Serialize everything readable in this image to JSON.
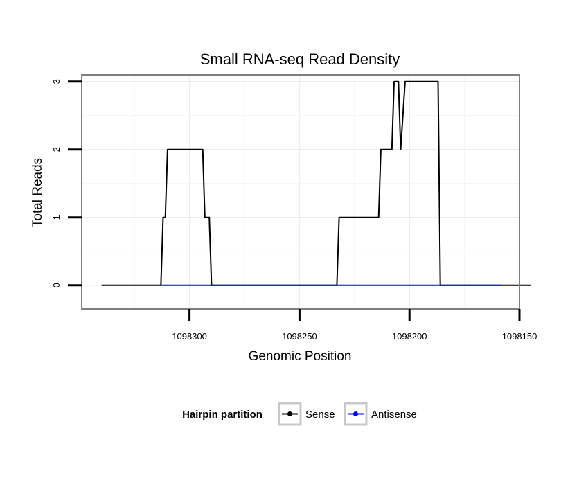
{
  "chart_data": {
    "type": "line",
    "title": "Small RNA-seq Read Density",
    "xlabel": "Genomic Position",
    "ylabel": "Total Reads",
    "x_reversed": true,
    "xlim": [
      1098349,
      1098150
    ],
    "ylim": [
      -0.35,
      3.1
    ],
    "x_ticks": [
      1098300,
      1098250,
      1098200,
      1098150
    ],
    "x_tick_labels": [
      "1098300",
      "1098250",
      "1098200",
      "1098150"
    ],
    "y_ticks": [
      0,
      1,
      2,
      3
    ],
    "y_tick_labels": [
      "0",
      "1",
      "2",
      "3"
    ],
    "grid": true,
    "legend": {
      "title": "Hairpin partition",
      "position": "bottom",
      "entries": [
        "Sense",
        "Antisense"
      ]
    },
    "series": [
      {
        "name": "Sense",
        "color": "#000000",
        "x": [
          1098340,
          1098313,
          1098312,
          1098311,
          1098310,
          1098294,
          1098293,
          1098291,
          1098290,
          1098253,
          1098233,
          1098232,
          1098214,
          1098213,
          1098208,
          1098207,
          1098205,
          1098204,
          1098202,
          1098200,
          1098199,
          1098198,
          1098187,
          1098186,
          1098184,
          1098183,
          1098182,
          1098181,
          1098176,
          1098175,
          1098158,
          1098157,
          1098150,
          1098145
        ],
        "y": [
          0,
          0,
          1,
          1,
          2,
          2,
          1,
          1,
          0,
          0,
          0,
          1,
          1,
          2,
          2,
          3,
          3,
          2,
          3,
          3,
          3,
          3,
          3,
          0,
          0,
          0,
          0,
          0,
          0,
          0,
          0,
          0,
          0,
          0
        ]
      },
      {
        "name": "Antisense",
        "color": "#0000ff",
        "x": [
          1098313,
          1098290,
          1098233,
          1098158
        ],
        "y": [
          0,
          0,
          0,
          0
        ]
      }
    ]
  }
}
